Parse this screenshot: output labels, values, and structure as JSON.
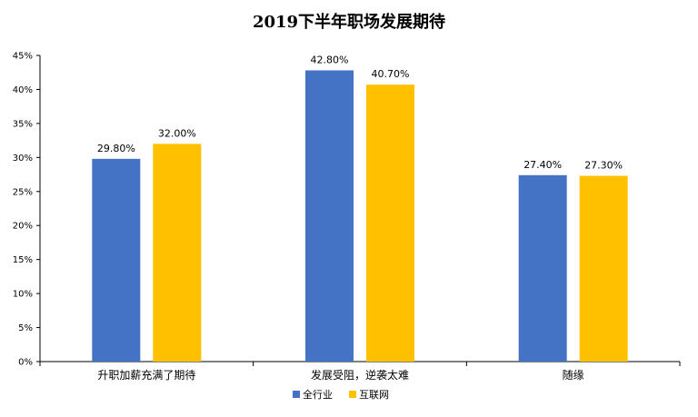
{
  "chart_data": {
    "type": "bar",
    "title": "2019下半年职场发展期待",
    "xlabel": "",
    "ylabel": "",
    "categories": [
      "升职加薪充满了期待",
      "发展受阻，逆袭太难",
      "随缘"
    ],
    "series": [
      {
        "name": "全行业",
        "values": [
          29.8,
          42.8,
          27.4
        ],
        "color": "#4472C4"
      },
      {
        "name": "互联网",
        "values": [
          32.0,
          40.7,
          27.3
        ],
        "color": "#FFC000"
      }
    ],
    "value_labels": [
      [
        "29.80%",
        "42.80%",
        "27.40%"
      ],
      [
        "32.00%",
        "40.70%",
        "27.30%"
      ]
    ],
    "ylim": [
      0,
      45
    ],
    "yticks": [
      0,
      5,
      10,
      15,
      20,
      25,
      30,
      35,
      40,
      45
    ],
    "ytick_labels": [
      "0%",
      "5%",
      "10%",
      "15%",
      "20%",
      "25%",
      "30%",
      "35%",
      "40%",
      "45%"
    ],
    "grid": false,
    "legend_position": "bottom-center"
  }
}
